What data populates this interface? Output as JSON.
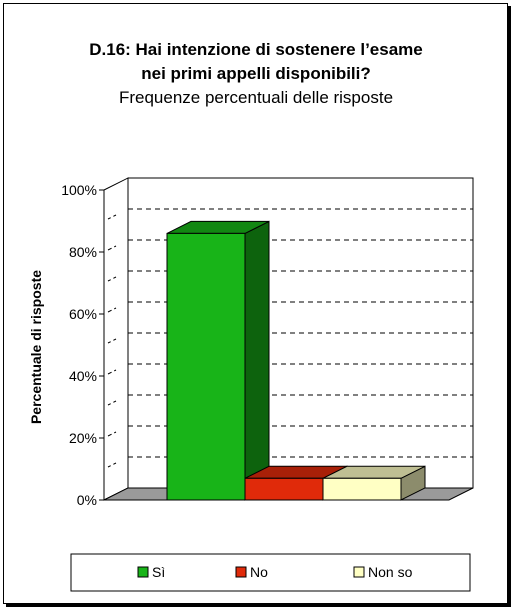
{
  "chart_data": {
    "type": "bar",
    "title_line1": "D.16: Hai intenzione di sostenere l’esame",
    "title_line2": "nei primi appelli disponibili?",
    "subtitle": "Frequenze percentuali delle risposte",
    "ylabel": "Percentuale di risposte",
    "xlabel": "",
    "ylim": [
      0,
      100
    ],
    "yticks": [
      "0%",
      "20%",
      "40%",
      "60%",
      "80%",
      "100%"
    ],
    "categories": [
      "Sì",
      "No",
      "Non so"
    ],
    "values": [
      86,
      7,
      7
    ],
    "colors": [
      "#18B418",
      "#E02A0A",
      "#FFFFC4"
    ],
    "grid": true,
    "legend_position": "bottom"
  }
}
